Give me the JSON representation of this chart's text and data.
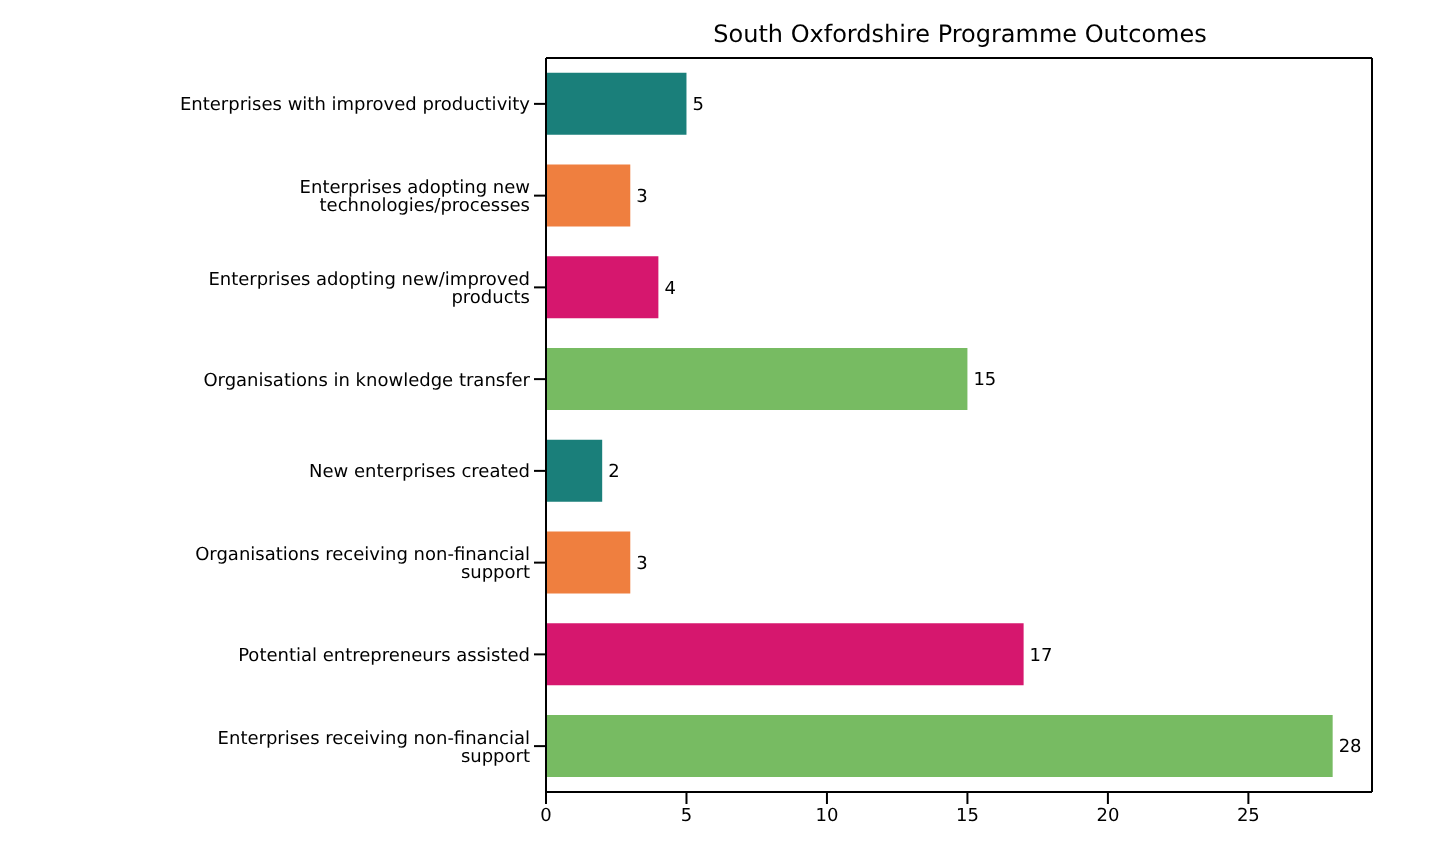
{
  "chart_data": {
    "type": "bar",
    "orientation": "horizontal",
    "title": "South Oxfordshire Programme Outcomes",
    "categories": [
      "Enterprises with improved productivity",
      "Enterprises adopting new technologies/processes",
      "Enterprises adopting new/improved products",
      "Organisations in knowledge transfer",
      "New enterprises created",
      "Organisations receiving non-financial support",
      "Potential entrepreneurs assisted",
      "Enterprises receiving non-financial support"
    ],
    "values": [
      5,
      3,
      4,
      15,
      2,
      3,
      17,
      28
    ],
    "colors": [
      "#1a7f7a",
      "#ef7f3f",
      "#d6176e",
      "#77bb62",
      "#1a7f7a",
      "#ef7f3f",
      "#d6176e",
      "#77bb62"
    ],
    "xlim": [
      0,
      29.4
    ],
    "xticks": [
      0,
      5,
      10,
      15,
      20,
      25
    ],
    "data_labels": true,
    "grid": false
  }
}
